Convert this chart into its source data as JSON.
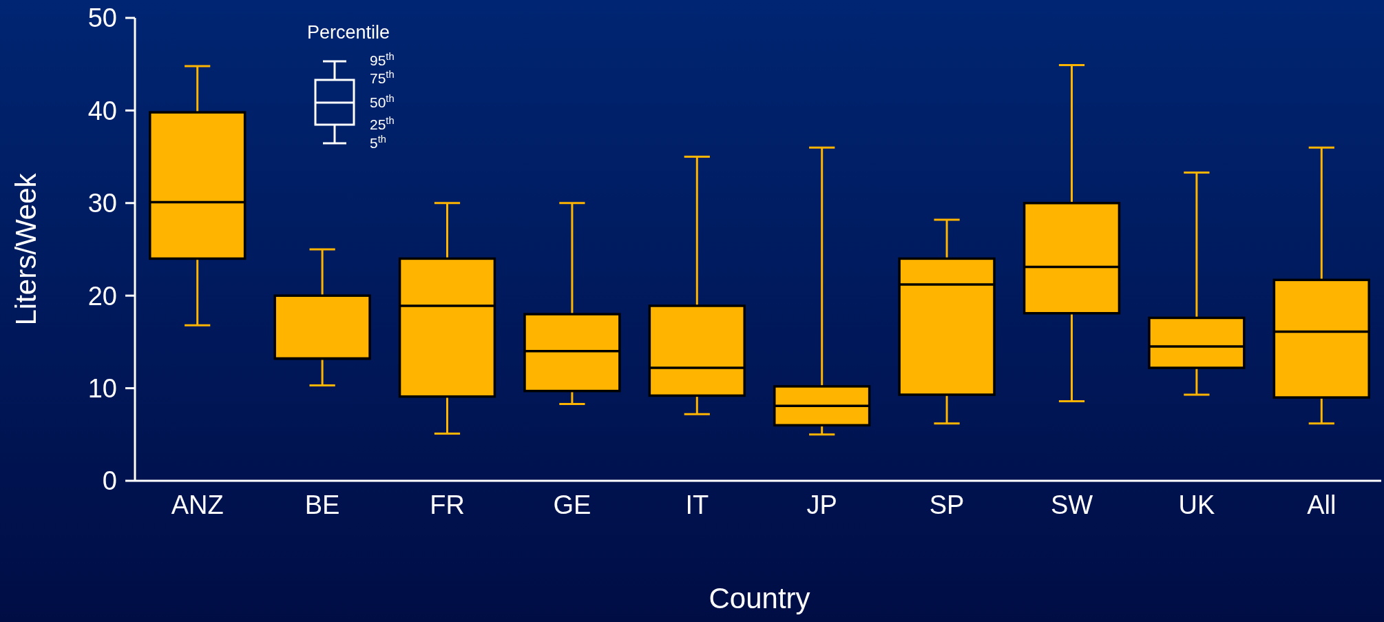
{
  "chart_data": {
    "type": "box",
    "categories": [
      "ANZ",
      "BE",
      "FR",
      "GE",
      "IT",
      "JP",
      "SP",
      "SW",
      "UK",
      "All"
    ],
    "boxes": [
      {
        "low": 16.8,
        "q1": 24.0,
        "median": 30.1,
        "q3": 39.8,
        "high": 44.8
      },
      {
        "low": 10.3,
        "q1": 13.2,
        "median": 13.2,
        "q3": 20.0,
        "high": 25.0
      },
      {
        "low": 5.1,
        "q1": 9.1,
        "median": 18.9,
        "q3": 24.0,
        "high": 30.0
      },
      {
        "low": 8.3,
        "q1": 9.7,
        "median": 14.0,
        "q3": 18.0,
        "high": 30.0
      },
      {
        "low": 7.2,
        "q1": 9.2,
        "median": 12.2,
        "q3": 18.9,
        "high": 35.0
      },
      {
        "low": 5.0,
        "q1": 6.0,
        "median": 8.1,
        "q3": 10.2,
        "high": 36.0
      },
      {
        "low": 6.2,
        "q1": 9.3,
        "median": 21.2,
        "q3": 24.0,
        "high": 28.2
      },
      {
        "low": 8.6,
        "q1": 18.1,
        "median": 23.1,
        "q3": 30.0,
        "high": 44.9
      },
      {
        "low": 9.3,
        "q1": 12.2,
        "median": 14.5,
        "q3": 17.6,
        "high": 33.3
      },
      {
        "low": 6.2,
        "q1": 9.0,
        "median": 16.1,
        "q3": 21.7,
        "high": 36.0
      }
    ],
    "color": "#ffb400",
    "xlabel": "Country",
    "ylabel": "Liters/Week",
    "ylim": [
      0,
      50
    ],
    "yticks": [
      0,
      10,
      20,
      30,
      40,
      50
    ],
    "annotations": [
      "Percentile",
      "95$^{th}$",
      "75$^{th}$",
      "50$^{th}$",
      "25$^{th}$",
      "5$^{th}$"
    ]
  }
}
